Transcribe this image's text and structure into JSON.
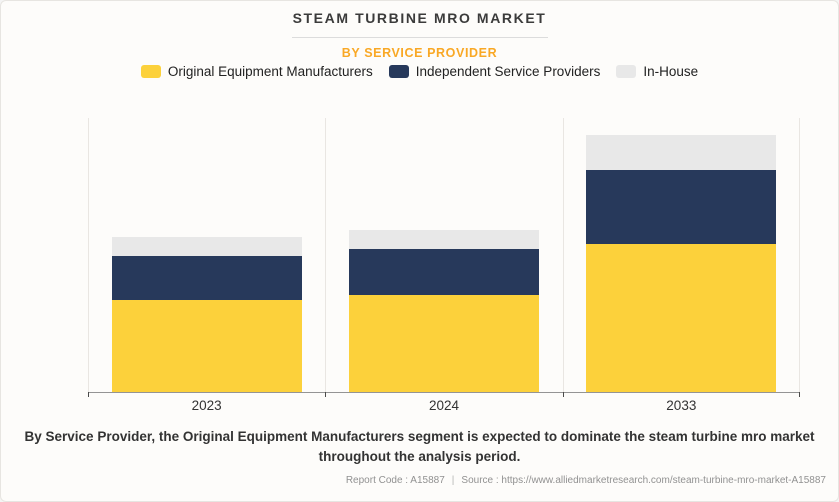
{
  "header": {
    "title": "STEAM TURBINE MRO MARKET",
    "subtitle": "BY SERVICE PROVIDER"
  },
  "chart_data": {
    "type": "bar",
    "stacked": true,
    "title": "STEAM TURBINE MRO MARKET",
    "subtitle": "BY SERVICE PROVIDER",
    "categories": [
      "2023",
      "2024",
      "2033"
    ],
    "series": [
      {
        "name": "Original Equipment Manufacturers",
        "color": "#FCD13B",
        "values": [
          92,
          97,
          149
        ]
      },
      {
        "name": "Independent Service Providers",
        "color": "#27395B",
        "values": [
          45,
          47,
          74
        ]
      },
      {
        "name": "In-House",
        "color": "#E8E8E8",
        "values": [
          19,
          19,
          35
        ]
      }
    ],
    "xlabel": "",
    "ylabel": "",
    "ylim": [
      0,
      276
    ],
    "y_axis_labels_visible": false,
    "grid": false,
    "legend_position": "top",
    "units": "relative height units (no y-axis values shown in source image)"
  },
  "colors": {
    "accent_subtitle": "#F9A825",
    "axis_line": "#949494",
    "separator_line": "#E9E6E2",
    "background": "#FDFCFA"
  },
  "description": "By Service Provider, the Original Equipment Manufacturers segment is expected to dominate the steam turbine mro market throughout the analysis period.",
  "footer": {
    "report_code": "Report Code : A15887",
    "separator": "|",
    "source": "Source : https://www.alliedmarketresearch.com/steam-turbine-mro-market-A15887"
  }
}
